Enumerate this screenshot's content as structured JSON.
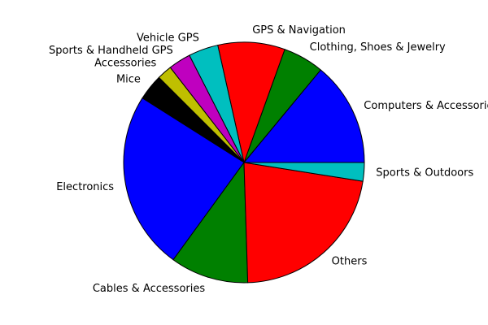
{
  "chart_data": {
    "type": "pie",
    "start_angle_deg": 0,
    "direction": "counterclockwise",
    "slices": [
      {
        "label": "Computers & Accessories",
        "value": 14.0,
        "color": "#0000ff"
      },
      {
        "label": "Clothing, Shoes & Jewelry",
        "value": 5.5,
        "color": "#008000"
      },
      {
        "label": "GPS & Navigation",
        "value": 9.0,
        "color": "#ff0000"
      },
      {
        "label": "Vehicle GPS",
        "value": 4.0,
        "color": "#00bfbf"
      },
      {
        "label": "Sports & Handheld GPS",
        "value": 3.0,
        "color": "#bf00bf"
      },
      {
        "label": "Accessories",
        "value": 2.0,
        "color": "#bfbf00"
      },
      {
        "label": "Mice",
        "value": 3.5,
        "color": "#000000"
      },
      {
        "label": "Electronics",
        "value": 24.0,
        "color": "#0000ff"
      },
      {
        "label": "Cables & Accessories",
        "value": 10.5,
        "color": "#008000"
      },
      {
        "label": "Others",
        "value": 22.0,
        "color": "#ff0000"
      },
      {
        "label": "Sports & Outdoors",
        "value": 2.5,
        "color": "#00bfbf"
      }
    ]
  }
}
